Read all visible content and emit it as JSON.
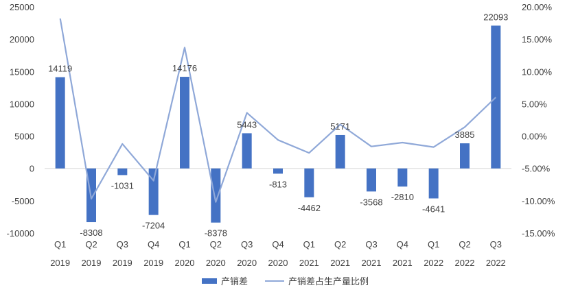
{
  "chart_data": {
    "type": "bar",
    "categories": [
      [
        "Q1",
        "2019"
      ],
      [
        "Q2",
        "2019"
      ],
      [
        "Q3",
        "2019"
      ],
      [
        "Q4",
        "2019"
      ],
      [
        "Q1",
        "2020"
      ],
      [
        "Q2",
        "2020"
      ],
      [
        "Q3",
        "2020"
      ],
      [
        "Q4",
        "2020"
      ],
      [
        "Q1",
        "2021"
      ],
      [
        "Q2",
        "2021"
      ],
      [
        "Q3",
        "2021"
      ],
      [
        "Q4",
        "2021"
      ],
      [
        "Q1",
        "2022"
      ],
      [
        "Q2",
        "2022"
      ],
      [
        "Q3",
        "2022"
      ]
    ],
    "series": [
      {
        "name": "产销差",
        "type": "bar",
        "axis": "left",
        "color": "#4472C4",
        "values": [
          14119,
          -8308,
          -1031,
          -7204,
          14176,
          -8378,
          5443,
          -813,
          -4462,
          5171,
          -3568,
          -2810,
          -4641,
          3885,
          22093
        ],
        "data_labels": [
          "14119",
          "-8308",
          "-1031",
          "-7204",
          "14176",
          "-8378",
          "5443",
          "-813",
          "-4462",
          "5171",
          "-3568",
          "-2810",
          "-4641",
          "3885",
          "22093"
        ]
      },
      {
        "name": "产销差占生产量比例",
        "type": "line",
        "axis": "right",
        "color": "#8FA8D8",
        "values": [
          0.182,
          -0.097,
          -0.012,
          -0.069,
          0.137,
          -0.102,
          0.036,
          -0.006,
          -0.026,
          0.018,
          -0.016,
          -0.01,
          -0.017,
          0.014,
          0.06
        ]
      }
    ],
    "left_axis": {
      "ylim": [
        -10000,
        25000
      ],
      "ticks": [
        25000,
        20000,
        15000,
        10000,
        5000,
        0,
        -5000,
        -10000
      ],
      "tick_labels": [
        "25000",
        "20000",
        "15000",
        "10000",
        "5000",
        "0",
        "-5000",
        "-10000"
      ]
    },
    "right_axis": {
      "ylim": [
        -0.15,
        0.2
      ],
      "ticks": [
        0.2,
        0.15,
        0.1,
        0.05,
        0.0,
        -0.05,
        -0.1,
        -0.15
      ],
      "tick_labels": [
        "20.00%",
        "15.00%",
        "10.00%",
        "5.00%",
        "0.00%",
        "-5.00%",
        "-10.00%",
        "-15.00%"
      ]
    },
    "title": "",
    "xlabel": "",
    "ylabel": "",
    "grid": false,
    "legend_position": "bottom"
  }
}
